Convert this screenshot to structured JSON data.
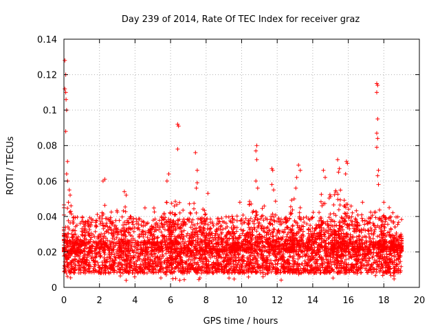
{
  "chart_data": {
    "type": "scatter",
    "title": "Day 239 of 2014, Rate Of TEC Index for receiver graz",
    "xlabel": "GPS time / hours",
    "ylabel": "ROTI / TECUs",
    "xlim": [
      0,
      20
    ],
    "ylim": [
      0,
      0.14
    ],
    "xticks": [
      "0",
      "2",
      "4",
      "6",
      "8",
      "10",
      "12",
      "14",
      "16",
      "18",
      "20"
    ],
    "yticks": [
      "0",
      "0.02",
      "0.04",
      "0.06",
      "0.08",
      "0.1",
      "0.12",
      "0.14"
    ],
    "xtick_values": [
      0,
      2,
      4,
      6,
      8,
      10,
      12,
      14,
      16,
      18,
      20
    ],
    "ytick_values": [
      0,
      0.02,
      0.04,
      0.06,
      0.08,
      0.1,
      0.12,
      0.14
    ],
    "grid": true,
    "marker": "+",
    "color": "#ff0000",
    "x_range_of_data": [
      0,
      19
    ],
    "baseline_band": [
      0.008,
      0.026
    ],
    "outliers": [
      {
        "x": 0.05,
        "y": 0.128
      },
      {
        "x": 0.1,
        "y": 0.12
      },
      {
        "x": 0.05,
        "y": 0.112
      },
      {
        "x": 0.1,
        "y": 0.11
      },
      {
        "x": 0.12,
        "y": 0.106
      },
      {
        "x": 0.15,
        "y": 0.1
      },
      {
        "x": 0.1,
        "y": 0.088
      },
      {
        "x": 0.2,
        "y": 0.071
      },
      {
        "x": 0.15,
        "y": 0.064
      },
      {
        "x": 0.2,
        "y": 0.06
      },
      {
        "x": 0.3,
        "y": 0.055
      },
      {
        "x": 0.35,
        "y": 0.052
      },
      {
        "x": 0.25,
        "y": 0.048
      },
      {
        "x": 0.4,
        "y": 0.046
      },
      {
        "x": 2.3,
        "y": 0.061
      },
      {
        "x": 2.2,
        "y": 0.06
      },
      {
        "x": 3.4,
        "y": 0.054
      },
      {
        "x": 3.5,
        "y": 0.052
      },
      {
        "x": 5.9,
        "y": 0.064
      },
      {
        "x": 5.8,
        "y": 0.06
      },
      {
        "x": 6.4,
        "y": 0.092
      },
      {
        "x": 6.45,
        "y": 0.091
      },
      {
        "x": 6.4,
        "y": 0.078
      },
      {
        "x": 7.4,
        "y": 0.076
      },
      {
        "x": 7.5,
        "y": 0.066
      },
      {
        "x": 7.5,
        "y": 0.059
      },
      {
        "x": 7.45,
        "y": 0.056
      },
      {
        "x": 8.1,
        "y": 0.053
      },
      {
        "x": 9.9,
        "y": 0.048
      },
      {
        "x": 10.85,
        "y": 0.08
      },
      {
        "x": 10.8,
        "y": 0.077
      },
      {
        "x": 10.85,
        "y": 0.072
      },
      {
        "x": 10.8,
        "y": 0.06
      },
      {
        "x": 10.9,
        "y": 0.056
      },
      {
        "x": 11.7,
        "y": 0.067
      },
      {
        "x": 11.75,
        "y": 0.066
      },
      {
        "x": 11.7,
        "y": 0.058
      },
      {
        "x": 11.8,
        "y": 0.055
      },
      {
        "x": 13.2,
        "y": 0.069
      },
      {
        "x": 13.3,
        "y": 0.066
      },
      {
        "x": 13.1,
        "y": 0.062
      },
      {
        "x": 13.05,
        "y": 0.056
      },
      {
        "x": 14.6,
        "y": 0.066
      },
      {
        "x": 14.7,
        "y": 0.062
      },
      {
        "x": 15.4,
        "y": 0.072
      },
      {
        "x": 15.5,
        "y": 0.067
      },
      {
        "x": 15.45,
        "y": 0.065
      },
      {
        "x": 15.9,
        "y": 0.071
      },
      {
        "x": 15.95,
        "y": 0.07
      },
      {
        "x": 15.85,
        "y": 0.064
      },
      {
        "x": 16.8,
        "y": 0.048
      },
      {
        "x": 17.6,
        "y": 0.115
      },
      {
        "x": 17.65,
        "y": 0.114
      },
      {
        "x": 17.6,
        "y": 0.11
      },
      {
        "x": 17.65,
        "y": 0.095
      },
      {
        "x": 17.6,
        "y": 0.087
      },
      {
        "x": 17.65,
        "y": 0.084
      },
      {
        "x": 17.6,
        "y": 0.079
      },
      {
        "x": 17.7,
        "y": 0.066
      },
      {
        "x": 17.65,
        "y": 0.063
      },
      {
        "x": 17.7,
        "y": 0.058
      },
      {
        "x": 18.0,
        "y": 0.048
      },
      {
        "x": 18.3,
        "y": 0.045
      }
    ],
    "activity_peaks": [
      {
        "x": 0.2,
        "y": 0.05
      },
      {
        "x": 1.1,
        "y": 0.044
      },
      {
        "x": 2.3,
        "y": 0.048
      },
      {
        "x": 3.4,
        "y": 0.048
      },
      {
        "x": 4.8,
        "y": 0.046
      },
      {
        "x": 5.9,
        "y": 0.052
      },
      {
        "x": 6.4,
        "y": 0.05
      },
      {
        "x": 7.5,
        "y": 0.05
      },
      {
        "x": 8.3,
        "y": 0.046
      },
      {
        "x": 9.2,
        "y": 0.042
      },
      {
        "x": 9.9,
        "y": 0.046
      },
      {
        "x": 10.8,
        "y": 0.052
      },
      {
        "x": 11.7,
        "y": 0.05
      },
      {
        "x": 12.5,
        "y": 0.042
      },
      {
        "x": 13.2,
        "y": 0.054
      },
      {
        "x": 14.1,
        "y": 0.045
      },
      {
        "x": 14.8,
        "y": 0.056
      },
      {
        "x": 15.5,
        "y": 0.058
      },
      {
        "x": 15.9,
        "y": 0.056
      },
      {
        "x": 16.8,
        "y": 0.046
      },
      {
        "x": 17.6,
        "y": 0.05
      },
      {
        "x": 18.3,
        "y": 0.044
      },
      {
        "x": 18.8,
        "y": 0.034
      }
    ]
  }
}
